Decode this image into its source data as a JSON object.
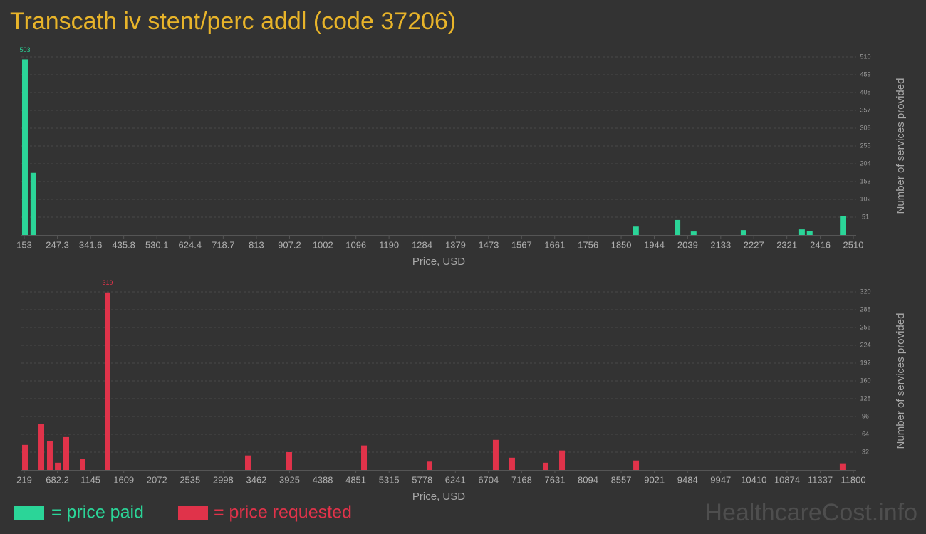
{
  "title": "Transcath iv stent/perc addl (code 37206)",
  "watermark": "HealthcareCost.info",
  "chart_data": [
    {
      "type": "bar",
      "x_label": "Price, USD",
      "y_label": "Number of services provided",
      "xlim": [
        153,
        2510
      ],
      "xticks": [
        153,
        247.3,
        341.6,
        435.8,
        530.1,
        624.4,
        718.7,
        813,
        907.2,
        1002,
        1096,
        1190,
        1284,
        1379,
        1473,
        1567,
        1661,
        1756,
        1850,
        1944,
        2039,
        2133,
        2227,
        2321,
        2416,
        2510
      ],
      "ylim": [
        0,
        510
      ],
      "yticks": [
        51,
        102,
        153,
        204,
        255,
        306,
        357,
        408,
        459,
        510
      ],
      "grid": true,
      "series": [
        {
          "name": "= price paid",
          "color": "#2bd598",
          "x": [
            155,
            179,
            1892,
            2010,
            2056,
            2198,
            2364,
            2386,
            2480
          ],
          "values": [
            503,
            178,
            24,
            43,
            10,
            14,
            16,
            12,
            55
          ]
        }
      ]
    },
    {
      "type": "bar",
      "x_label": "Price, USD",
      "y_label": "Number of services provided",
      "xlim": [
        219,
        11800
      ],
      "xticks": [
        219,
        682.2,
        1145,
        1609,
        2072,
        2535,
        2998,
        3462,
        3925,
        4388,
        4851,
        5315,
        5778,
        6241,
        6704,
        7168,
        7631,
        8094,
        8557,
        9021,
        9484,
        9947,
        10410,
        10874,
        11337,
        11800
      ],
      "ylim": [
        0,
        320
      ],
      "yticks": [
        32,
        64,
        96,
        128,
        160,
        192,
        224,
        256,
        288,
        320
      ],
      "grid": true,
      "series": [
        {
          "name": "= price requested",
          "color": "#e0334a",
          "x": [
            229,
            458,
            577,
            687,
            806,
            1035,
            1383,
            3343,
            3920,
            4965,
            5880,
            6805,
            7034,
            7502,
            7731,
            8766,
            11650
          ],
          "values": [
            45,
            83,
            52,
            13,
            59,
            20,
            319,
            26,
            32,
            44,
            15,
            54,
            22,
            13,
            35,
            17,
            12
          ]
        }
      ]
    }
  ]
}
